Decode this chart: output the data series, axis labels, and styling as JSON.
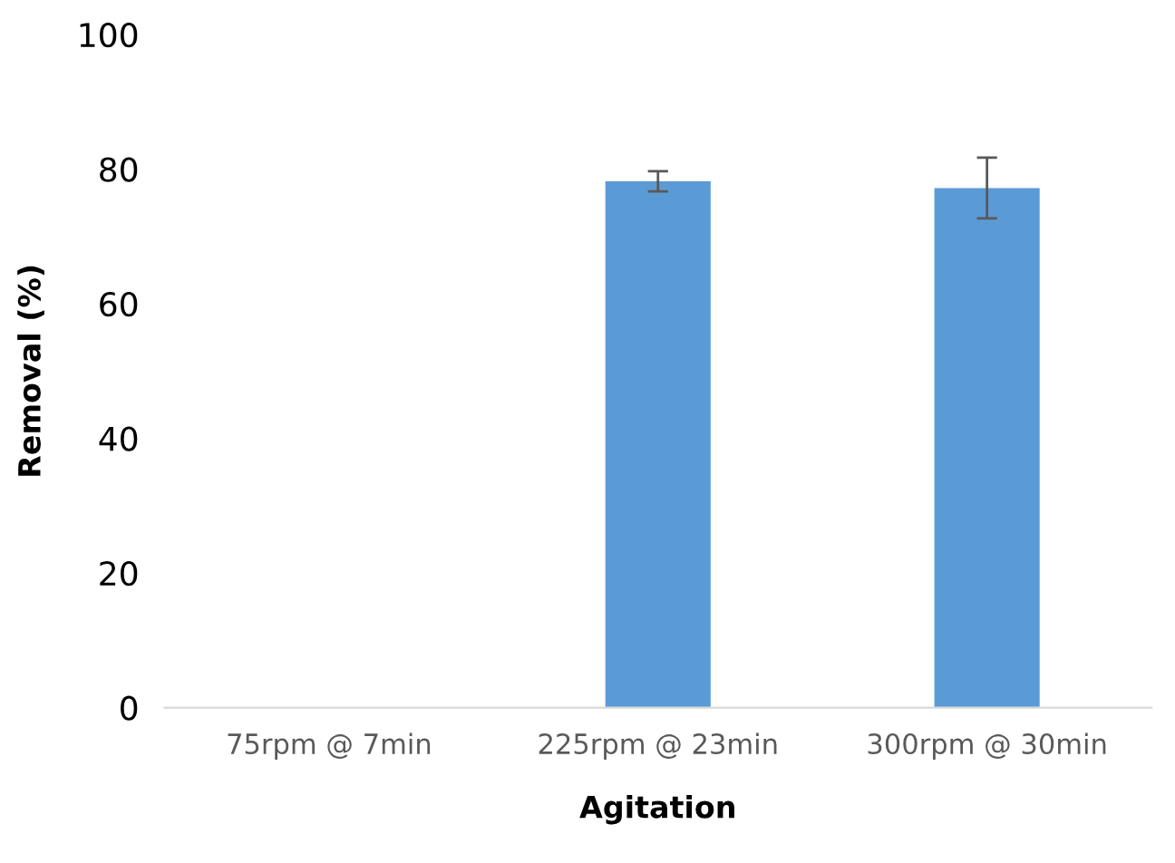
{
  "chart_data": {
    "type": "bar",
    "xlabel": "Agitation",
    "ylabel": "Removal (%)",
    "categories": [
      "75rpm @ 7min",
      "225rpm @ 23min",
      "300rpm @ 30min"
    ],
    "values": [
      0,
      78.2,
      77.2
    ],
    "errors": [
      null,
      1.5,
      4.5
    ],
    "color": "#5b9bd5",
    "ylim": [
      0,
      100
    ],
    "yticks": [
      0,
      20,
      40,
      60,
      80,
      100
    ],
    "grid": false,
    "legend": false
  }
}
